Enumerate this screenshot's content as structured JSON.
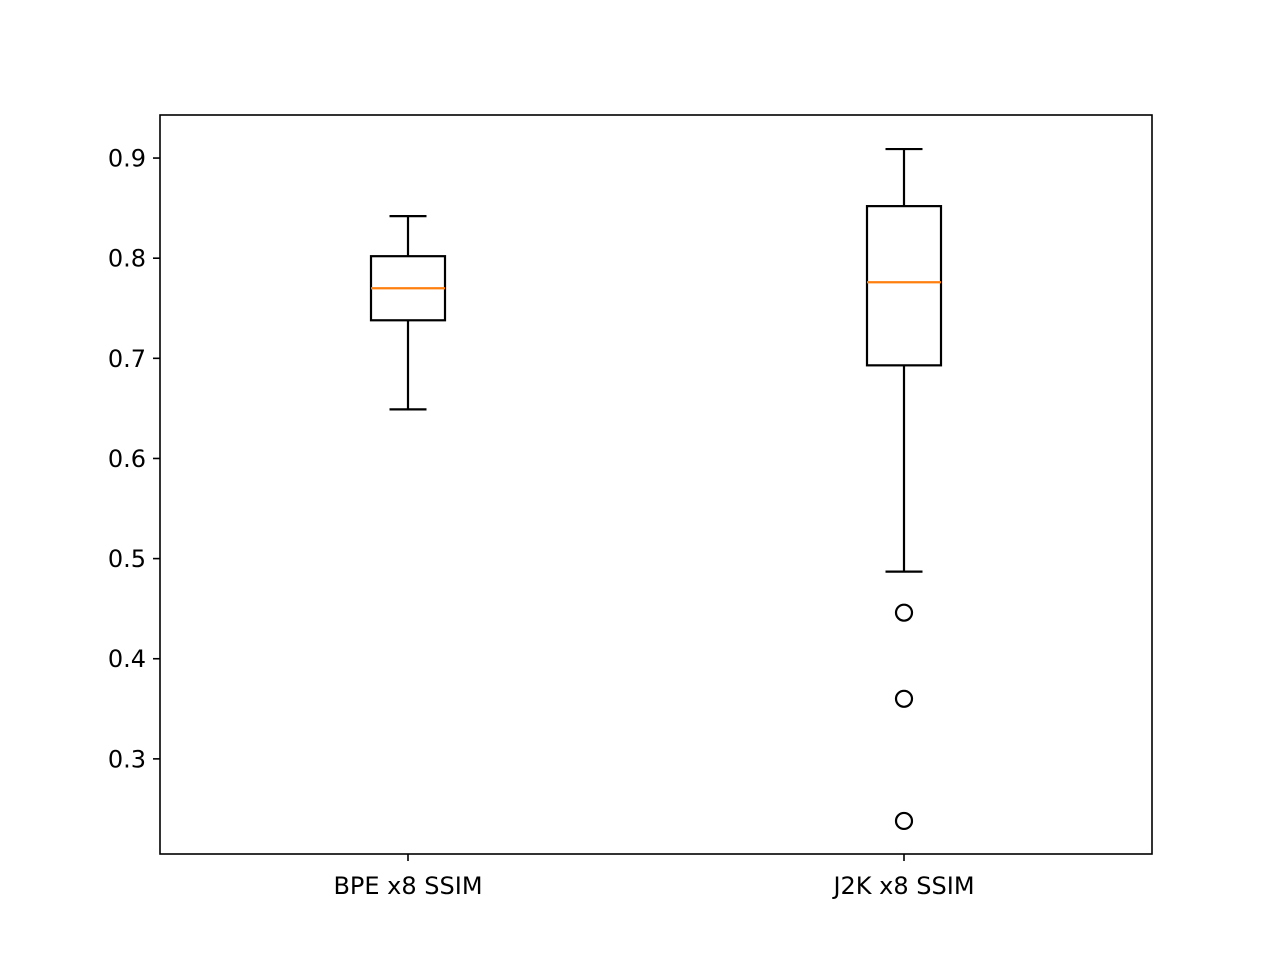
{
  "chart_data": {
    "type": "boxplot",
    "title": "",
    "xlabel": "",
    "ylabel": "",
    "ylim": [
      0.205,
      0.943
    ],
    "yticks": [
      0.3,
      0.4,
      0.5,
      0.6,
      0.7,
      0.8,
      0.9
    ],
    "ytick_labels": [
      "0.3",
      "0.4",
      "0.5",
      "0.6",
      "0.7",
      "0.8",
      "0.9"
    ],
    "categories": [
      "BPE x8 SSIM",
      "J2K x8 SSIM"
    ],
    "boxes": [
      {
        "label": "BPE x8 SSIM",
        "whisker_low": 0.649,
        "q1": 0.738,
        "median": 0.77,
        "q3": 0.802,
        "whisker_high": 0.842,
        "outliers": []
      },
      {
        "label": "J2K x8 SSIM",
        "whisker_low": 0.487,
        "q1": 0.693,
        "median": 0.776,
        "q3": 0.852,
        "whisker_high": 0.909,
        "outliers": [
          0.446,
          0.36,
          0.238
        ]
      }
    ],
    "grid": false,
    "legend": "none",
    "colors": {
      "box": "#000000",
      "median": "#ff7f0e",
      "outlier": "#000000",
      "axes": "#000000"
    }
  }
}
